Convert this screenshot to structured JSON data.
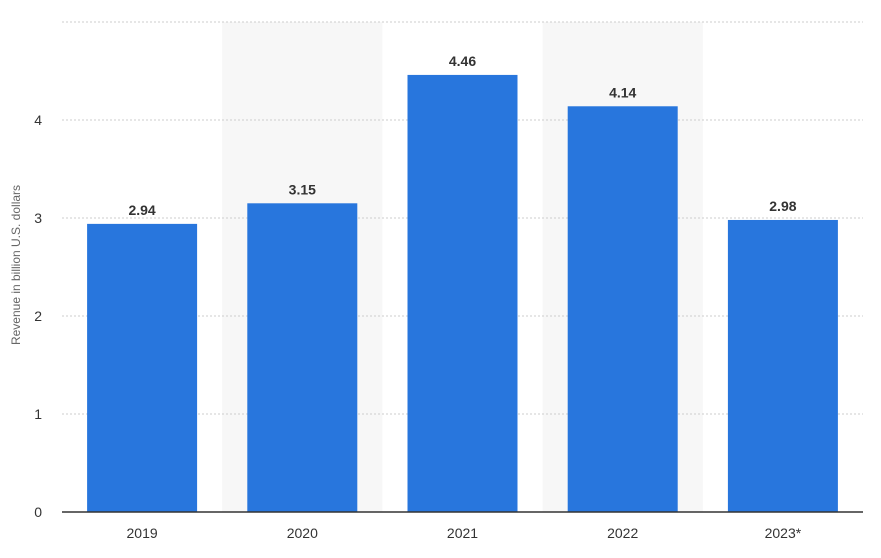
{
  "chart_data": {
    "type": "bar",
    "categories": [
      "2019",
      "2020",
      "2021",
      "2022",
      "2023*"
    ],
    "values": [
      2.94,
      3.15,
      4.46,
      4.14,
      2.98
    ],
    "value_labels": [
      "2.94",
      "3.15",
      "4.46",
      "4.14",
      "2.98"
    ],
    "ylabel": "Revenue in billion U.S. dollars",
    "xlabel": "",
    "ylim": [
      0,
      5
    ],
    "yticks": [
      0,
      1,
      2,
      3,
      4
    ],
    "grid": true,
    "bar_color": "#2876dd",
    "alternate_band_color": "#f7f7f7"
  }
}
